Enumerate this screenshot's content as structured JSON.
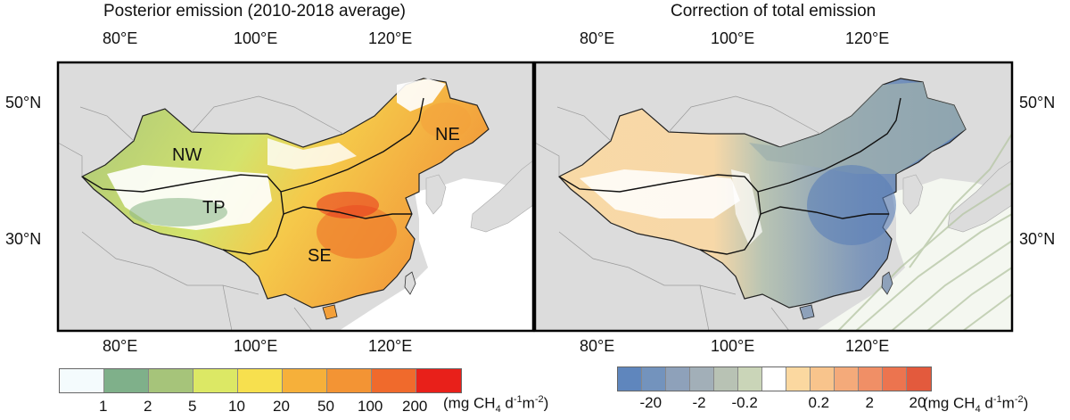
{
  "left_panel": {
    "title": "Posterior emission (2010-2018 average)",
    "regions": {
      "nw": "NW",
      "ne": "NE",
      "tp": "TP",
      "se": "SE"
    }
  },
  "right_panel": {
    "title": "Correction of total emission"
  },
  "axes": {
    "lon_ticks": [
      "80°E",
      "100°E",
      "120°E"
    ],
    "lat_ticks": [
      "50°N",
      "30°N"
    ]
  },
  "colorbar_left": {
    "colors": [
      "#f4fbfd",
      "#7fb08a",
      "#a6c47a",
      "#dce865",
      "#f7e04e",
      "#f6b03a",
      "#f39434",
      "#f06a2c",
      "#e8201a"
    ],
    "labels": [
      "1",
      "2",
      "5",
      "10",
      "20",
      "50",
      "100",
      "200"
    ],
    "unit_pre": "(mg CH",
    "unit_sub": "4",
    "unit_mid": " d",
    "unit_sup1": "-1",
    "unit_m": "m",
    "unit_sup2": "-2",
    "unit_post": ")"
  },
  "colorbar_right": {
    "colors": [
      "#5f86bd",
      "#7393bd",
      "#8ea1ba",
      "#a2afb8",
      "#b8c2b4",
      "#cad5b8",
      "#ffffff",
      "#fbd8a0",
      "#f8c48c",
      "#f4aa7a",
      "#f08f66",
      "#ec744f",
      "#e35a3d"
    ],
    "labels": [
      "-20",
      "-2",
      "-0.2",
      "0.2",
      "2",
      "20"
    ],
    "unit_pre": "(mg CH",
    "unit_sub": "4",
    "unit_mid": " d",
    "unit_sup1": "-1",
    "unit_m": "m",
    "unit_sup2": "-2",
    "unit_post": ")"
  }
}
